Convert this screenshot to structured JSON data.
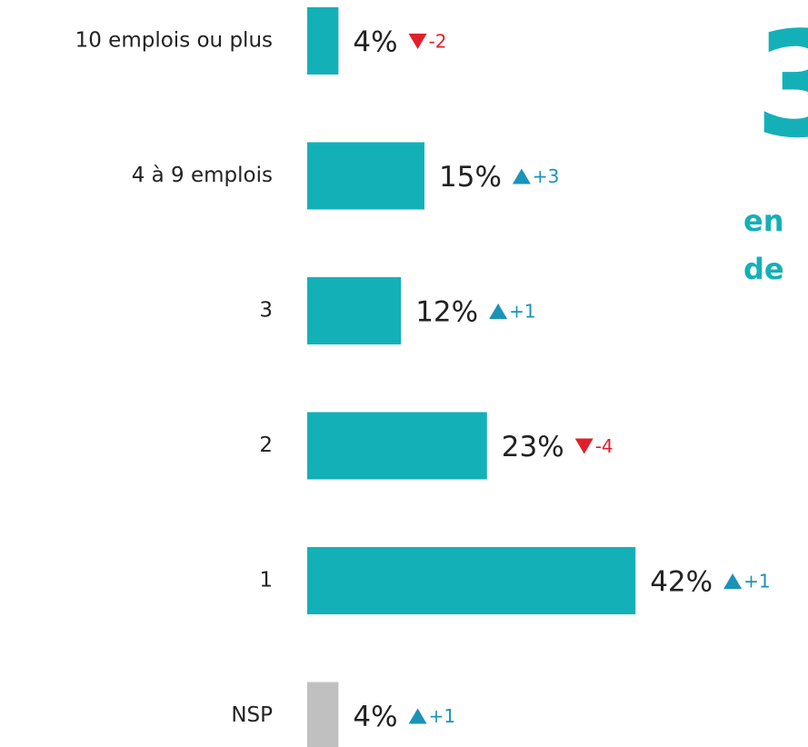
{
  "chart_data": {
    "type": "hbar",
    "categories": [
      "10 emplois ou plus",
      "4 à 9 emplois",
      "3",
      "2",
      "1",
      "NSP"
    ],
    "values": [
      4,
      15,
      12,
      23,
      42,
      4
    ],
    "value_labels": [
      "4%",
      "15%",
      "12%",
      "23%",
      "42%",
      "4%"
    ],
    "colors": [
      "#14b0b8",
      "#14b0b8",
      "#14b0b8",
      "#14b0b8",
      "#14b0b8",
      "#c0c0c0"
    ],
    "changes": {
      "values": [
        -2,
        3,
        1,
        -4,
        1,
        1
      ],
      "labels": [
        "-2",
        "+3",
        "+1",
        "-4",
        "+1",
        "+1"
      ],
      "up_color": "#1a93b8",
      "down_color": "#e0202a"
    },
    "annotations": [
      "3",
      "en",
      "de"
    ],
    "annotation_color": "#14b0b8"
  }
}
